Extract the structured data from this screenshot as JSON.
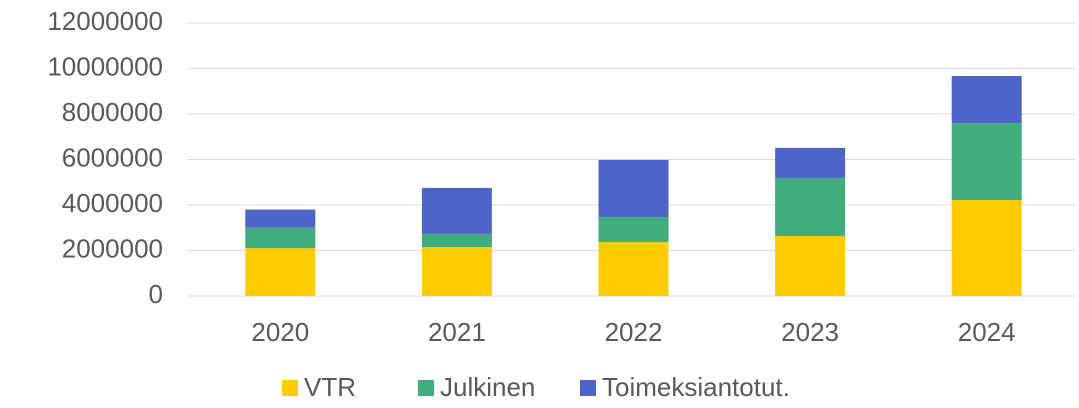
{
  "chart_data": {
    "type": "stacked_bar",
    "categories": [
      "2020",
      "2021",
      "2022",
      "2023",
      "2024"
    ],
    "series": [
      {
        "name": "VTR",
        "color": "#ffcc00",
        "values": [
          2100000,
          2150000,
          2370000,
          2640000,
          4220000
        ]
      },
      {
        "name": "Julkinen",
        "color": "#40ad7c",
        "values": [
          900000,
          580000,
          1100000,
          2550000,
          3380000
        ]
      },
      {
        "name": "Toimeksiantotut.",
        "color": "#4f64c9",
        "values": [
          800000,
          2020000,
          2510000,
          1320000,
          2070000
        ]
      }
    ],
    "ylim": [
      0,
      12000000
    ],
    "yticks": [
      0,
      2000000,
      4000000,
      6000000,
      8000000,
      10000000,
      12000000
    ],
    "grid": true,
    "legend": "bottom"
  }
}
